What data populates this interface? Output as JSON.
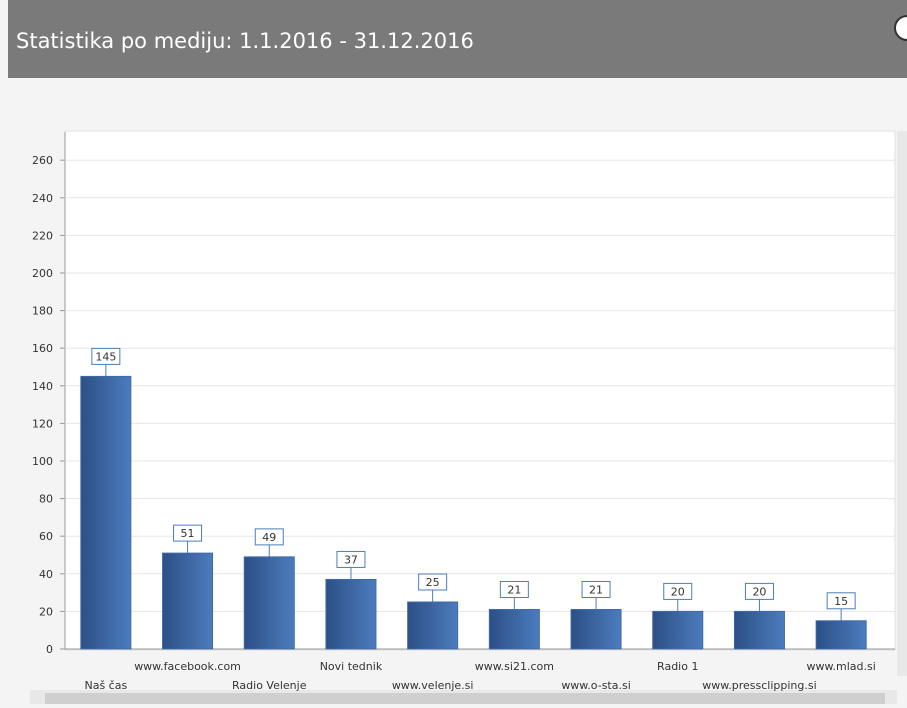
{
  "header": {
    "title": "Statistika po mediju: 1.1.2016 - 31.12.2016"
  },
  "chart_data": {
    "type": "bar",
    "categories": [
      "Naš čas",
      "www.facebook.com",
      "Radio Velenje",
      "Novi tednik",
      "www.velenje.si",
      "www.si21.com",
      "www.o-sta.si",
      "Radio 1",
      "www.pressclipping.si",
      "www.mlad.si"
    ],
    "values": [
      145,
      51,
      49,
      37,
      25,
      21,
      21,
      20,
      20,
      15
    ],
    "color": "#3f6aa6",
    "ylim": [
      0,
      275
    ],
    "yticks": [
      0,
      20,
      40,
      60,
      80,
      100,
      120,
      140,
      160,
      180,
      200,
      220,
      240,
      260
    ],
    "grid": true
  }
}
